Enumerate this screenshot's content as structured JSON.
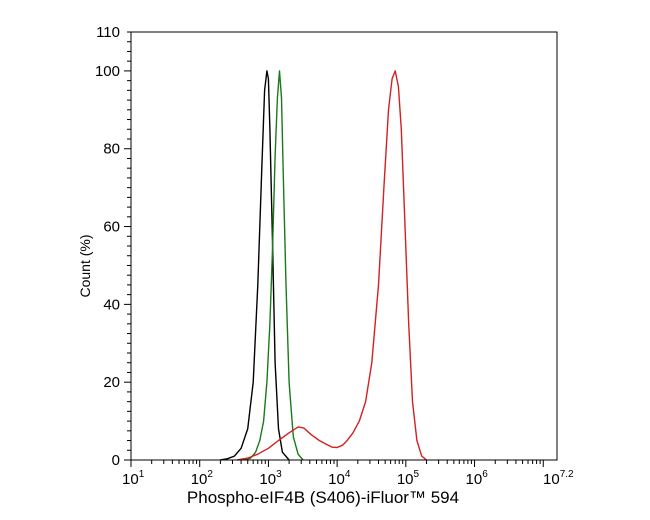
{
  "chart_data": {
    "type": "line",
    "title": "",
    "xlabel": "Phospho-eIF4B (S406)-iFluor™ 594",
    "ylabel": "Count  (%)",
    "x_scale": "log",
    "xlim": [
      10,
      15848932
    ],
    "ylim": [
      0,
      110
    ],
    "x_ticks": [
      {
        "base": "10",
        "exp": "1",
        "value": 10
      },
      {
        "base": "10",
        "exp": "2",
        "value": 100
      },
      {
        "base": "10",
        "exp": "3",
        "value": 1000
      },
      {
        "base": "10",
        "exp": "4",
        "value": 10000
      },
      {
        "base": "10",
        "exp": "5",
        "value": 100000
      },
      {
        "base": "10",
        "exp": "6",
        "value": 1000000
      },
      {
        "base": "10",
        "exp": "7.2",
        "value": 15848932
      }
    ],
    "y_ticks": [
      "0",
      "20",
      "40",
      "60",
      "80",
      "100",
      "110"
    ],
    "y_tick_values": [
      0,
      20,
      40,
      60,
      80,
      100,
      110
    ],
    "grid": false,
    "legend": "none",
    "series": [
      {
        "color": "#000000",
        "x": [
          200,
          250,
          320,
          400,
          500,
          600,
          700,
          800,
          880,
          950,
          1000,
          1050,
          1150,
          1250,
          1400,
          1600,
          2000
        ],
        "y": [
          0,
          0.3,
          1,
          3,
          8,
          20,
          45,
          75,
          95,
          100,
          98,
          85,
          55,
          25,
          8,
          2,
          0
        ]
      },
      {
        "color": "#1a7a1a",
        "x": [
          450,
          550,
          650,
          750,
          850,
          950,
          1050,
          1150,
          1250,
          1350,
          1450,
          1550,
          1650,
          1800,
          2000,
          2300,
          2700,
          3200
        ],
        "y": [
          0,
          0.5,
          2,
          5,
          10,
          20,
          35,
          55,
          78,
          93,
          100,
          93,
          72,
          45,
          20,
          6,
          1.5,
          0
        ]
      },
      {
        "color": "#d42020",
        "x": [
          350,
          500,
          700,
          1000,
          1400,
          2000,
          2700,
          3300,
          4200,
          5500,
          7000,
          8500,
          10000,
          12000,
          14000,
          17000,
          21000,
          26000,
          32000,
          40000,
          48000,
          56000,
          63000,
          70000,
          78000,
          86000,
          95000,
          110000,
          125000,
          145000,
          170000,
          200000
        ],
        "y": [
          0,
          0.5,
          1.5,
          3,
          5,
          7,
          8.5,
          8.2,
          6.5,
          5,
          4,
          3.3,
          3.2,
          3.8,
          5,
          7,
          10,
          15,
          25,
          45,
          70,
          90,
          98,
          100,
          96,
          85,
          65,
          35,
          15,
          5,
          1,
          0
        ]
      }
    ]
  }
}
